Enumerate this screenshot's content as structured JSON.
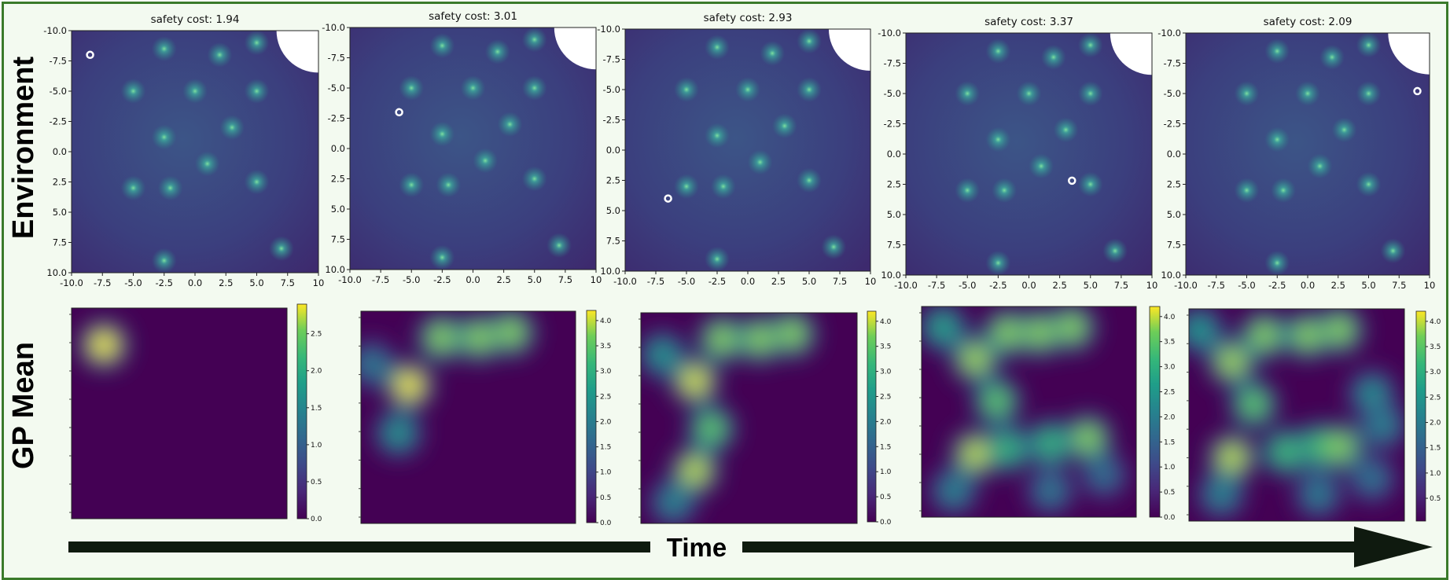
{
  "row_labels": {
    "environment": "Environment",
    "gp_mean": "GP Mean"
  },
  "time_label": "Time",
  "colors": {
    "frame": "#3a7a2a",
    "background": "#f3faf0",
    "arrow": "#0f1a0f",
    "agent": "#ffffff",
    "obstacle": "#ffffff"
  },
  "axis": {
    "x_ticks": [
      "-10.0",
      "-7.5",
      "-5.0",
      "-2.5",
      "0.0",
      "2.5",
      "5.0",
      "7.5",
      "10"
    ],
    "y_ticks": [
      "-10.0",
      "-7.5",
      "-5.0",
      "-2.5",
      "0.0",
      "2.5",
      "5.0",
      "7.5",
      "10.0"
    ],
    "range": [
      -10,
      10
    ]
  },
  "hazards": [
    [
      -2.5,
      -8.5
    ],
    [
      2,
      -8
    ],
    [
      5,
      -9
    ],
    [
      -5,
      -5
    ],
    [
      0,
      -5
    ],
    [
      5,
      -5
    ],
    [
      -2.5,
      -1.2
    ],
    [
      3,
      -2
    ],
    [
      1,
      1
    ],
    [
      -5,
      3
    ],
    [
      -2,
      3
    ],
    [
      5,
      2.5
    ],
    [
      7,
      8
    ],
    [
      -2.5,
      9
    ]
  ],
  "obstacle": {
    "cx": 10,
    "cy": -10,
    "r": 3.4
  },
  "env_panels": [
    {
      "title": "safety cost: 1.94",
      "agent": [
        -8.5,
        -8
      ]
    },
    {
      "title": "safety cost: 3.01",
      "agent": [
        -6,
        -3
      ]
    },
    {
      "title": "safety cost: 2.93",
      "agent": [
        -6.5,
        4
      ]
    },
    {
      "title": "safety cost: 3.37",
      "agent": [
        3.5,
        2.2
      ]
    },
    {
      "title": "safety cost: 2.09",
      "agent": [
        9,
        -5.2
      ]
    }
  ],
  "gp_panels": [
    {
      "colorbar_ticks": [
        "0.0",
        "0.5",
        "1.0",
        "1.5",
        "2.0",
        "2.5"
      ],
      "colorbar_max": 2.9,
      "peaks": [
        [
          -7,
          -6.5,
          2.9
        ]
      ]
    },
    {
      "colorbar_ticks": [
        "0.0",
        "0.5",
        "1.0",
        "1.5",
        "2.0",
        "2.5",
        "3.0",
        "3.5",
        "4.0"
      ],
      "colorbar_max": 4.2,
      "peaks": [
        [
          -5.5,
          -3,
          4.2
        ],
        [
          -2.5,
          -7.5,
          3.8
        ],
        [
          1,
          -7.5,
          3.8
        ],
        [
          4,
          -8,
          3.8
        ],
        [
          -6.5,
          1.5,
          2.5
        ],
        [
          -9,
          -5,
          2.0
        ]
      ]
    },
    {
      "colorbar_ticks": [
        "0.0",
        "0.5",
        "1.0",
        "1.5",
        "2.0",
        "2.5",
        "3.0",
        "3.5",
        "4.0"
      ],
      "colorbar_max": 4.2,
      "peaks": [
        [
          -5,
          -3.5,
          4.1
        ],
        [
          -2.5,
          -7.5,
          3.8
        ],
        [
          1,
          -7.5,
          3.8
        ],
        [
          4,
          -8,
          3.8
        ],
        [
          -3.5,
          1,
          3.6
        ],
        [
          -5,
          5,
          4.0
        ],
        [
          -7,
          8,
          2.2
        ],
        [
          -8,
          -6,
          2.5
        ]
      ]
    },
    {
      "colorbar_ticks": [
        "0.0",
        "0.5",
        "1.0",
        "1.5",
        "2.0",
        "2.5",
        "3.0",
        "3.5",
        "4.0"
      ],
      "colorbar_max": 4.2,
      "peaks": [
        [
          -5,
          -5,
          3.9
        ],
        [
          -2,
          -7.5,
          3.8
        ],
        [
          1,
          -7.5,
          3.8
        ],
        [
          4,
          -8,
          3.8
        ],
        [
          -3,
          -1,
          3.6
        ],
        [
          -5,
          4,
          4.0
        ],
        [
          -2,
          3.5,
          3.2
        ],
        [
          2,
          3,
          3.2
        ],
        [
          5.5,
          2.5,
          3.8
        ],
        [
          -7,
          7.5,
          2.2
        ],
        [
          2,
          7.5,
          2.0
        ],
        [
          7,
          6,
          1.8
        ],
        [
          -8,
          -8,
          2.8
        ]
      ]
    },
    {
      "colorbar_ticks": [
        "0.5",
        "1.0",
        "1.5",
        "2.0",
        "2.5",
        "3.0",
        "3.5",
        "4.0"
      ],
      "colorbar_max": 4.2,
      "peaks": [
        [
          -6,
          -5,
          3.9
        ],
        [
          -3,
          -7.5,
          3.8
        ],
        [
          1,
          -7.5,
          3.8
        ],
        [
          4,
          -8,
          3.8
        ],
        [
          -4,
          -1,
          3.6
        ],
        [
          -6,
          4,
          4.0
        ],
        [
          -1,
          3.5,
          3.3
        ],
        [
          2,
          3,
          3.3
        ],
        [
          4,
          3,
          3.8
        ],
        [
          7,
          -2,
          2.4
        ],
        [
          8,
          1,
          2.2
        ],
        [
          -7,
          7.5,
          2.2
        ],
        [
          2,
          7.5,
          2.1
        ],
        [
          7,
          6,
          1.9
        ],
        [
          -9,
          -8,
          2.6
        ]
      ]
    }
  ]
}
